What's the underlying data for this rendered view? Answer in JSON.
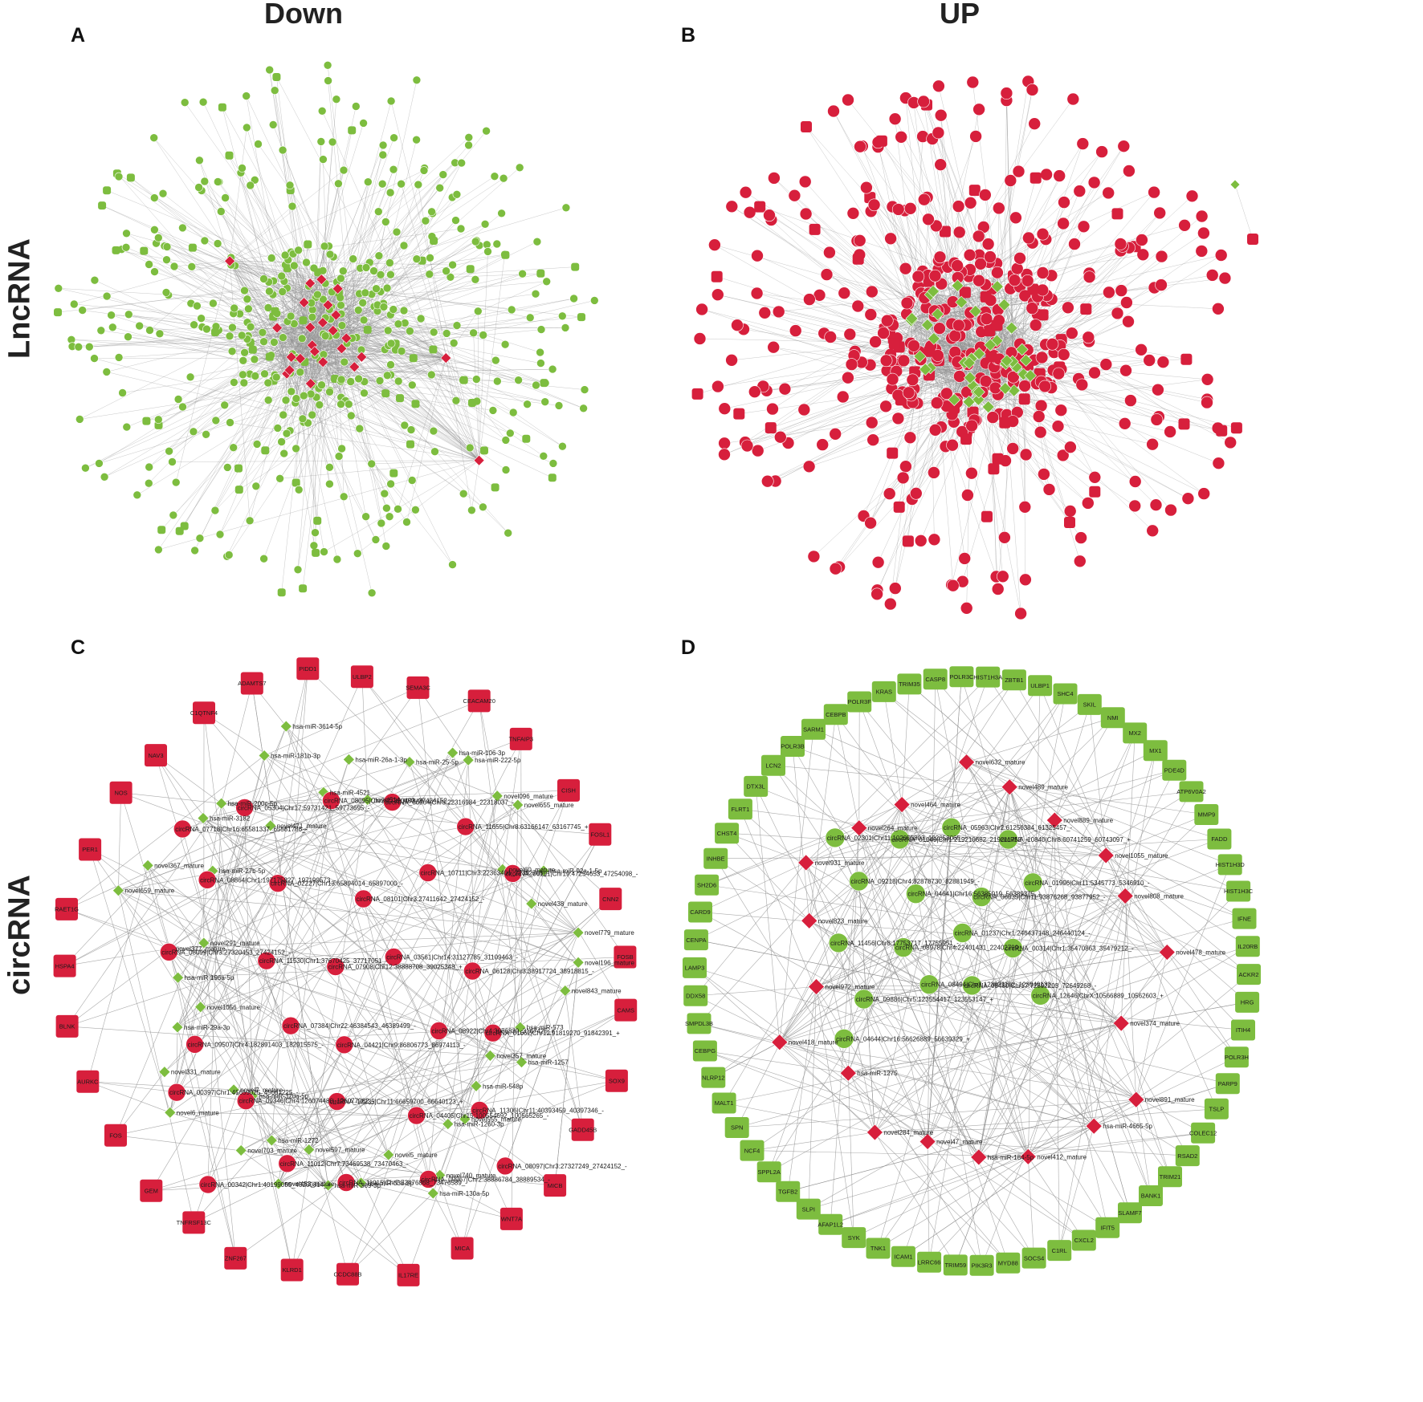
{
  "column_headers": {
    "down": "Down",
    "up": "UP"
  },
  "row_labels": {
    "lncrna": "LncRNA",
    "circrna": "circRNA"
  },
  "colors": {
    "red": "#d71f3c",
    "green": "#7dbd3f",
    "edge": "#8e8e8e"
  },
  "panels": {
    "A": {
      "letter": "A"
    },
    "B": {
      "letter": "B"
    },
    "C": {
      "letter": "C",
      "genes": [
        "PIDD1",
        "ULBP2",
        "SEMA3C",
        "CEACAM20",
        "TNFAIP3",
        "CISH",
        "FOSL1",
        "CNN2",
        "FOSB",
        "CAMS",
        "SOX9",
        "GADD45B",
        "MICB",
        "WNT7A",
        "MICA",
        "IL17RE",
        "CCDC88B",
        "KLRD1",
        "ZNF267",
        "TNFRSF13C",
        "GEM",
        "FOS",
        "AURKC",
        "BLNK",
        "HSPA4",
        "RAET1G",
        "PER1",
        "NOS",
        "NAV3",
        "C1QTNF4",
        "ADAMTS7"
      ],
      "mirnas": [
        "novel514_mature",
        "hsa-miR-25-5p",
        "hsa-miR-106-3p",
        "hsa-miR-222-5p",
        "novel096_mature",
        "novel655_mature",
        "novel60_mature",
        "hsa-miR-92a-1-5p",
        "novel438_mature",
        "novel779_mature",
        "novel196_mature",
        "novel843_mature",
        "hsa-miR-573",
        "hsa-miR-1257",
        "novel357_mature",
        "hsa-miR-548p",
        "novel555_mature",
        "hsa-miR-1260-3p",
        "novel740_mature",
        "hsa-miR-130a-5p",
        "novel5_mature",
        "hsa-miR-33b-3p",
        "hsa-miR-369-3p",
        "novel597_mature",
        "novel453_mature",
        "hsa-miR-1272",
        "novel703_mature",
        "hsa-miR-320a-5p",
        "novel7_mature",
        "novel6_mature",
        "novel331_mature",
        "hsa-miR-29a-3p",
        "novel1056_mature",
        "hsa-miR-196a-5p",
        "novel377_mature",
        "novel291_mature",
        "novel659_mature",
        "novel367_mature",
        "hsa-miR-27b-5p",
        "hsa-miR-3182",
        "hsa-miR-200c-5p",
        "novel471_mature",
        "hsa-miR-181b-3p",
        "hsa-miR-3614-5p",
        "hsa-miR-4521",
        "hsa-miR-26a-1-3p"
      ],
      "circrnas": [
        "circRNA_07718|Chr16:65581337_65581786_-",
        "circRNA_05304|Chr17:59731421_59773695_-",
        "circRNA_08095|Chr3:27320453_27424152_-",
        "circRNA_06964|Chr3:22316984_22318037_-",
        "circRNA_11655|Chr8:63166147_63167745_+",
        "circRNA_08864|Chr1:197175827_197199573_-",
        "circRNA_02227|Chr13:65894014_65897000_-",
        "circRNA_08101|Chr3:27411642_27424152_-",
        "circRNA_10711|Chr3:22363406_22392706_-",
        "circRNA_06191|Chr19:47254653_47254098_-",
        "circRNA_08099|Chr3:27320453_27424152_-",
        "circRNA_11530|Chr1:37670425_37717051_-",
        "circRNA_07908|Chr12:38888708_39025348_+",
        "circRNA_03561|Chr14:31127785_31109463_-",
        "circRNA_06128|Chr3:38917724_38918815_-",
        "circRNA_09507|Chr4:182891403_182915575_-",
        "circRNA_07384|Chr22:46384543_46389499_-",
        "circRNA_04421|Chr9:86806773_86974113_-",
        "circRNA_08922|Chr4:3086839_3167425_+",
        "circRNA_01662|Chr12:91819270_91842391_+",
        "circRNA_00397|Chr1:45659025_45661225_-",
        "circRNA_09346|Chr4:126074480_126077962_-",
        "circRNA_12235|Chr11:66659700_66640123_+",
        "circRNA_04405|Chr15:100554692_100565265_-",
        "circRNA_11306|Chr11:40393459_40397346_-",
        "circRNA_00342|Chr1:40199055_40200814_+",
        "circRNA_11012|Chr7:73469538_73470463_-",
        "circRNA_11015|Chr7:73476868_73476589_-",
        "circRNA_09967|Chr2:38886784_38889534_-",
        "circRNA_08097|Chr3:27327249_27424152_-"
      ]
    },
    "D": {
      "letter": "D",
      "genes": [
        "TRIM35",
        "CASP8",
        "POLR3C",
        "HIST1H3A",
        "ZBTB1",
        "ULBP1",
        "SHC4",
        "SKIL",
        "NMI",
        "MX2",
        "MX1",
        "PDE4D",
        "ATP6V0A2",
        "MMP9",
        "FADD",
        "HIST1H3D",
        "HIST1H3C",
        "IFNE",
        "IL20RB",
        "ACKR2",
        "HRG",
        "ITIH4",
        "POLR3H",
        "PARP9",
        "TSLP",
        "COLEC12",
        "RSAD2",
        "TRIM21",
        "BANK1",
        "SLAMF7",
        "IFIT5",
        "CXCL2",
        "C1RL",
        "SOCS4",
        "MYD88",
        "PIK3R3",
        "TRIM59",
        "LRRC66",
        "ICAM1",
        "TNK1",
        "SYK",
        "AFAP1L2",
        "SLPI",
        "TGFB2",
        "SPPL2A",
        "NCF4",
        "SPN",
        "MALT1",
        "NLRP12",
        "CEBPG",
        "SMPDL3B",
        "DDX58",
        "LAMP3",
        "CENPA",
        "CARD9",
        "SH2D6",
        "INHBE",
        "CHST4",
        "FLRT1",
        "DTX3L",
        "LCN2",
        "POLR3B",
        "SARM1",
        "CEBPB",
        "POLR3F",
        "KRAS"
      ],
      "mirnas": [
        "novel489_mature",
        "novel889_mature",
        "novel1055_mature",
        "novel808_mature",
        "novel478_mature",
        "novel374_mature",
        "novel891_mature",
        "hsa-miR-4665-5p",
        "novel412_mature",
        "hsa-miR-184-5p",
        "novel47_mature",
        "novel284_mature",
        "hsa-miR-1275",
        "novel418_mature",
        "novel972_mature",
        "novel823_mature",
        "novel931_mature",
        "novel264_mature",
        "novel464_mature",
        "novel632_mature"
      ],
      "circrnas": [
        "circRNA_02301|Chr11:102055803_102058065_-",
        "circRNA_01049|Chr1:219210682_219211752_+",
        "circRNA_05963|Chr2:61256384_61325457_-",
        "circRNA_10840|Chr8:60741259_60743097_+",
        "circRNA_09218|Chr4:82878730_82881949_-",
        "circRNA_04641|Chr16:56385919_56389375_-",
        "circRNA_06635|Chr11:93876268_93877952_-",
        "circRNA_01996|Chr11:5345773_5346910_-",
        "circRNA_11456|Chr8:17753717_17755951_-",
        "circRNA_08978|Chr4:22401431_22402799_-",
        "circRNA_01237|Chr1:246437148_246440124_-",
        "circRNA_00314|Chr1:35470863_35479212_-",
        "circRNA_09886|Chr5:123554417_123553147_+",
        "circRNA_08494|Chr3:123931102_123949132_-",
        "circRNA_05480|Chr17:72592203_72649268_-",
        "circRNA_12646|ChrX:10566889_10562603_+",
        "circRNA_04644|Chr16:56626889_56639329_+"
      ]
    }
  }
}
